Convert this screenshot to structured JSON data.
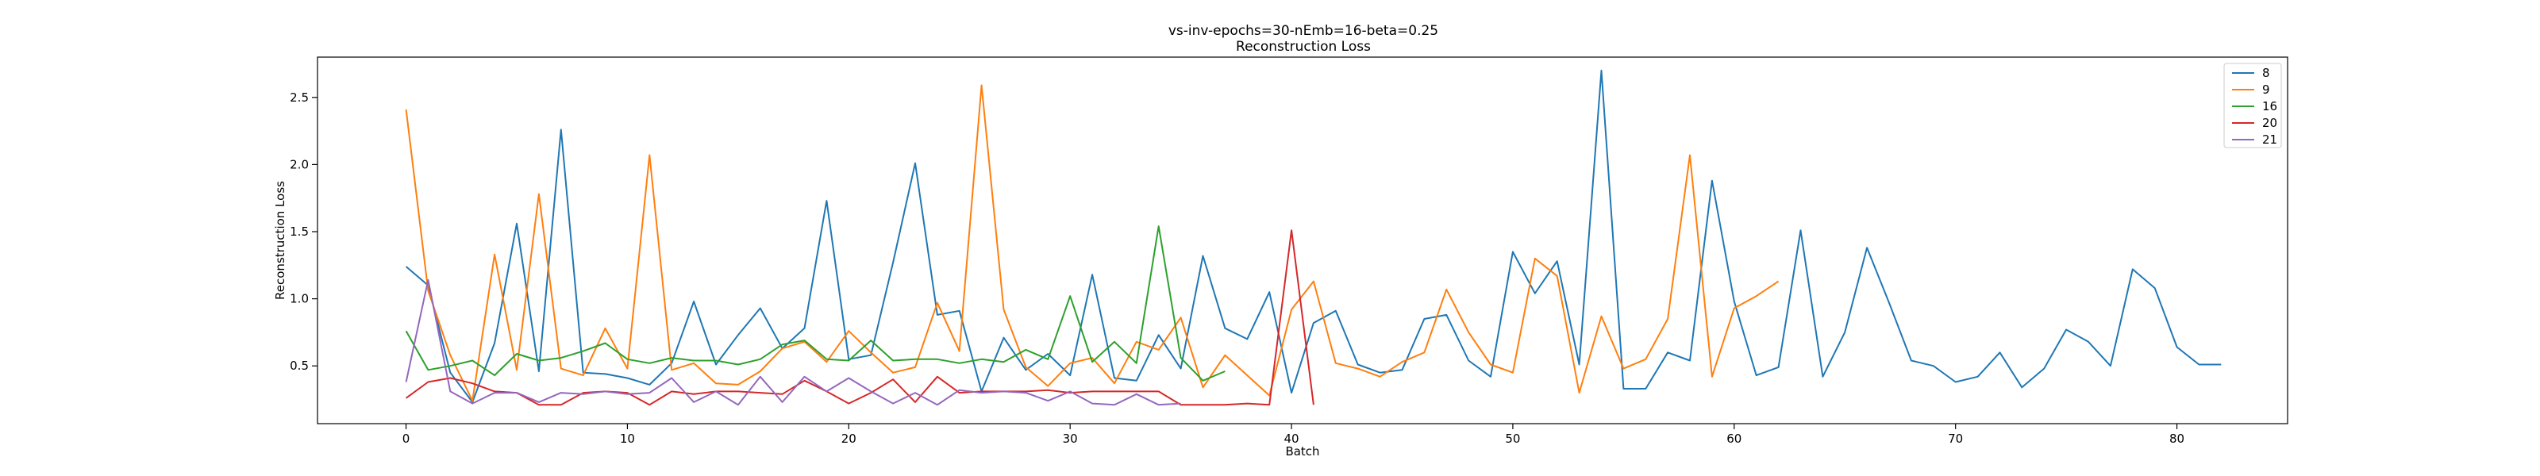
{
  "chart_data": {
    "type": "line",
    "title": "vs-inv-epochs=30-nEmb=16-beta=0.25",
    "subtitle": "Reconstruction Loss",
    "xlabel": "Batch",
    "ylabel": "Reconstruction Loss",
    "xlim": [
      -4,
      85
    ],
    "ylim": [
      0.07,
      2.8
    ],
    "xticks": [
      0,
      10,
      20,
      30,
      40,
      50,
      60,
      70,
      80
    ],
    "yticks": [
      0.5,
      1.0,
      1.5,
      2.0,
      2.5
    ],
    "ytick_labels": [
      "0.5",
      "1.0",
      "1.5",
      "2.0",
      "2.5"
    ],
    "grid": false,
    "legend_position": "top-right",
    "series": [
      {
        "name": "8",
        "color": "#1f77b4",
        "values": [
          1.24,
          1.1,
          0.45,
          0.23,
          0.67,
          1.56,
          0.46,
          2.26,
          0.45,
          0.44,
          0.41,
          0.36,
          0.52,
          0.98,
          0.51,
          0.73,
          0.93,
          0.63,
          0.78,
          1.73,
          0.55,
          0.58,
          1.27,
          2.01,
          0.88,
          0.91,
          0.31,
          0.71,
          0.47,
          0.59,
          0.43,
          1.18,
          0.41,
          0.39,
          0.73,
          0.48,
          1.32,
          0.78,
          0.7,
          1.05,
          0.3,
          0.82,
          0.91,
          0.51,
          0.45,
          0.47,
          0.85,
          0.88,
          0.54,
          0.42,
          1.35,
          1.04,
          1.28,
          0.51,
          2.7,
          0.33,
          0.33,
          0.6,
          0.54,
          1.88,
          0.98,
          0.43,
          0.49,
          1.51,
          0.42,
          0.75,
          1.38,
          0.97,
          0.54,
          0.5,
          0.38,
          0.42,
          0.6,
          0.34,
          0.48,
          0.77,
          0.68,
          0.5,
          1.22,
          1.08,
          0.64,
          0.51,
          0.51
        ]
      },
      {
        "name": "9",
        "color": "#ff7f0e",
        "values": [
          2.41,
          1.06,
          0.58,
          0.24,
          1.33,
          0.47,
          1.78,
          0.48,
          0.43,
          0.78,
          0.48,
          2.07,
          0.47,
          0.52,
          0.37,
          0.36,
          0.46,
          0.63,
          0.68,
          0.53,
          0.76,
          0.6,
          0.45,
          0.49,
          0.97,
          0.61,
          2.59,
          0.92,
          0.49,
          0.35,
          0.52,
          0.56,
          0.37,
          0.68,
          0.62,
          0.86,
          0.34,
          0.58,
          0.43,
          0.28,
          0.92,
          1.13,
          0.52,
          0.48,
          0.42,
          0.53,
          0.6,
          1.07,
          0.75,
          0.51,
          0.45,
          1.3,
          1.17,
          0.3,
          0.87,
          0.48,
          0.55,
          0.85,
          2.07,
          0.42,
          0.93,
          1.02,
          1.13
        ]
      },
      {
        "name": "16",
        "color": "#2ca02c",
        "values": [
          0.76,
          0.47,
          0.5,
          0.54,
          0.43,
          0.59,
          0.54,
          0.56,
          0.61,
          0.67,
          0.55,
          0.52,
          0.56,
          0.54,
          0.54,
          0.51,
          0.55,
          0.66,
          0.69,
          0.55,
          0.54,
          0.69,
          0.54,
          0.55,
          0.55,
          0.52,
          0.55,
          0.53,
          0.62,
          0.55,
          1.02,
          0.53,
          0.68,
          0.52,
          1.54,
          0.56,
          0.39,
          0.46
        ]
      },
      {
        "name": "20",
        "color": "#d62728",
        "values": [
          0.26,
          0.38,
          0.41,
          0.37,
          0.31,
          0.3,
          0.21,
          0.21,
          0.3,
          0.31,
          0.3,
          0.21,
          0.31,
          0.29,
          0.31,
          0.31,
          0.3,
          0.29,
          0.39,
          0.31,
          0.22,
          0.3,
          0.4,
          0.23,
          0.42,
          0.3,
          0.31,
          0.31,
          0.31,
          0.32,
          0.3,
          0.31,
          0.31,
          0.31,
          0.31,
          0.21,
          0.21,
          0.21,
          0.22,
          0.21,
          1.51,
          0.21
        ]
      },
      {
        "name": "21",
        "color": "#9467bd",
        "values": [
          0.38,
          1.14,
          0.31,
          0.22,
          0.3,
          0.3,
          0.23,
          0.3,
          0.29,
          0.31,
          0.29,
          0.3,
          0.41,
          0.23,
          0.31,
          0.21,
          0.42,
          0.23,
          0.42,
          0.31,
          0.41,
          0.31,
          0.22,
          0.3,
          0.21,
          0.32,
          0.3,
          0.31,
          0.3,
          0.24,
          0.31,
          0.22,
          0.21,
          0.29,
          0.21,
          0.22
        ]
      }
    ]
  }
}
